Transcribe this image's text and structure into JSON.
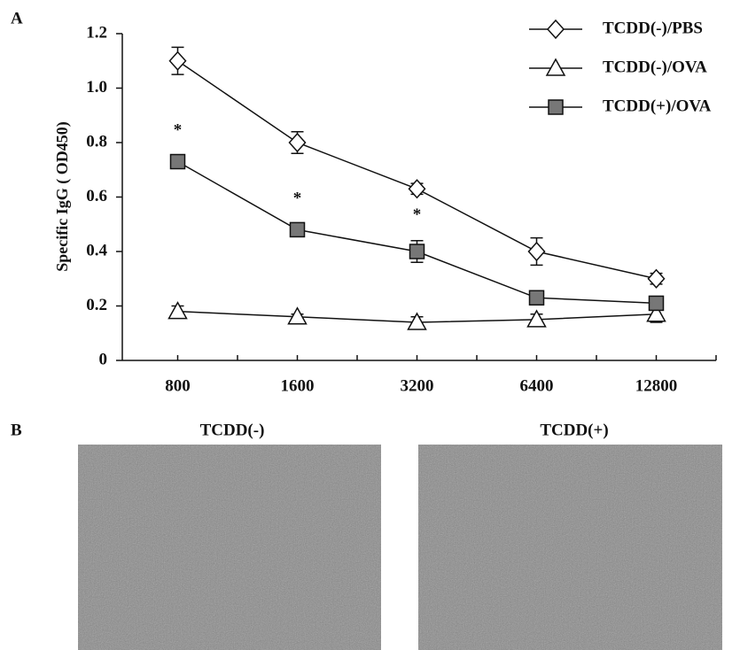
{
  "panel_labels": [
    "A",
    "B"
  ],
  "chart_data": {
    "type": "line",
    "y_label": "Specific IgG ( OD450)",
    "categories": [
      "800",
      "1600",
      "3200",
      "6400",
      "12800"
    ],
    "ylim": [
      0,
      1.2
    ],
    "yticks": [
      0,
      0.2,
      0.4,
      0.6,
      0.8,
      {
        "value": 1.0,
        "label": "1.0"
      },
      1.2
    ],
    "significance": [
      "*",
      "*",
      "*",
      null,
      null
    ],
    "series": [
      {
        "name": "TCDD(-)/PBS",
        "marker": "diamond",
        "color": "#ffffff",
        "values": [
          1.1,
          0.8,
          0.63,
          0.4,
          0.3
        ],
        "errors": [
          0.05,
          0.04,
          0.02,
          0.05,
          0.02
        ]
      },
      {
        "name": "TCDD(-)/OVA",
        "marker": "triangle",
        "color": "#ffffff",
        "values": [
          0.18,
          0.16,
          0.14,
          0.15,
          0.17
        ],
        "errors": [
          0.02,
          0.01,
          0.02,
          0.02,
          0.03
        ]
      },
      {
        "name": "TCDD(+)/OVA",
        "marker": "square",
        "color": "#777777",
        "values": [
          0.73,
          0.48,
          0.4,
          0.23,
          0.21
        ],
        "errors": [
          0.02,
          0.02,
          0.04,
          0.01,
          0.02
        ]
      }
    ]
  },
  "images": [
    {
      "title": "TCDD(-)"
    },
    {
      "title": "TCDD(+)"
    }
  ]
}
